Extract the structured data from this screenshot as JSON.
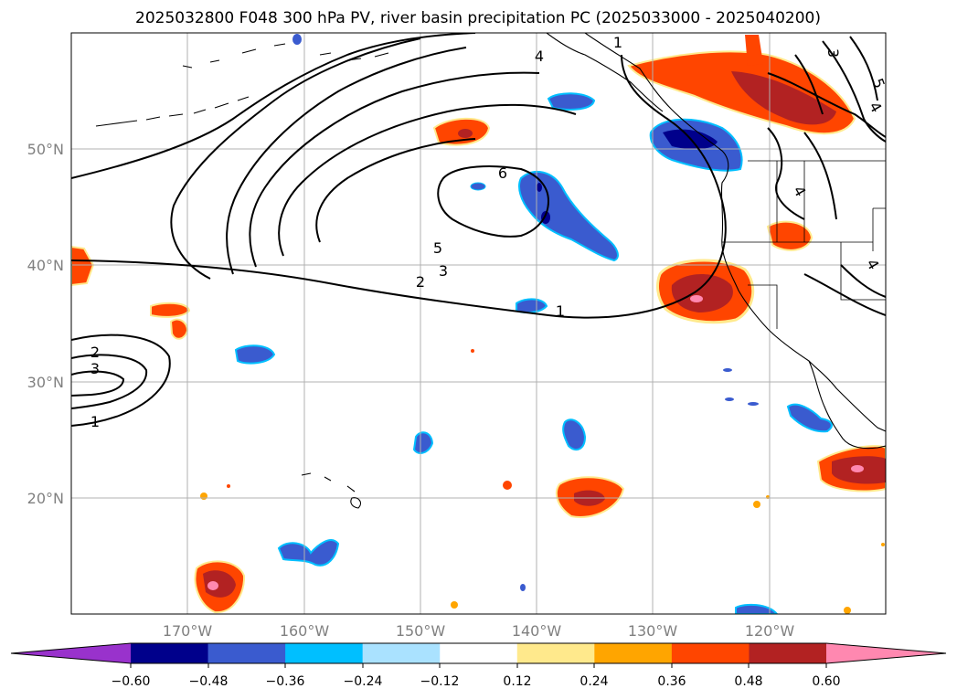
{
  "title": "2025032800 F048 300 hPa PV, river basin precipitation PC (2025033000 - 2025040200)",
  "map": {
    "lat_labels": [
      "50°N",
      "40°N",
      "30°N",
      "20°N"
    ],
    "lon_labels": [
      "170°W",
      "160°W",
      "150°W",
      "140°W",
      "130°W",
      "120°W"
    ]
  },
  "contour_labels": [
    "1",
    "4",
    "6",
    "5",
    "3",
    "2",
    "1",
    "2",
    "3",
    "1",
    "4",
    "4",
    "3",
    "5",
    "4"
  ],
  "colorbar": {
    "ticks": [
      "−0.60",
      "−0.48",
      "−0.36",
      "−0.24",
      "−0.12",
      "0.12",
      "0.24",
      "0.36",
      "0.48",
      "0.60"
    ],
    "colors": [
      "#9932cc",
      "#00008b",
      "#3a5bcf",
      "#00bfff",
      "#aae2ff",
      "#ffffff",
      "#ffe98c",
      "#ffa500",
      "#ff4500",
      "#b22222",
      "#ff88b0"
    ]
  },
  "shading_colors": {
    "neg_light": "#aae2ff",
    "neg_mid": "#00bfff",
    "neg_strong": "#3a5bcf",
    "neg_max": "#00008b",
    "pos_light": "#ffe98c",
    "pos_mid": "#ffa500",
    "pos_strong": "#ff4500",
    "pos_max": "#b22222",
    "pos_peak": "#ff88b0"
  }
}
